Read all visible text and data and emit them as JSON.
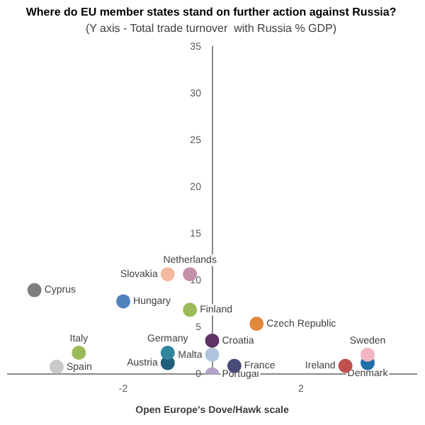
{
  "chart_data": {
    "type": "scatter",
    "title": "Where do EU member states stand on further action against Russia?",
    "subtitle": "(Y axis - Total trade turnover  with Russia % GDP)",
    "xlabel": "Open Europe's Dove/Hawk scale",
    "xlim": [
      -4.6,
      4.6
    ],
    "ylim": [
      0,
      35
    ],
    "xticks": [
      -2,
      2
    ],
    "yticks": [
      0,
      5,
      10,
      15,
      20,
      25,
      30,
      35
    ],
    "grid": false,
    "legend": false,
    "marker": "circle",
    "series": [
      {
        "name": "Spain",
        "color": "#c8c8c8",
        "x": [
          -3.5
        ],
        "values": [
          0.8
        ]
      },
      {
        "name": "Italy",
        "color": "#9bbb59",
        "x": [
          -3
        ],
        "values": [
          2.3
        ]
      },
      {
        "name": "Cyprus",
        "color": "#7f7f7f",
        "x": [
          -4
        ],
        "values": [
          9
        ]
      },
      {
        "name": "Hungary",
        "color": "#4f81bd",
        "x": [
          -2
        ],
        "values": [
          7.8
        ]
      },
      {
        "name": "Slovakia",
        "color": "#f2b8a0",
        "x": [
          -1
        ],
        "values": [
          10.7
        ]
      },
      {
        "name": "Netherlands",
        "color": "#c490a8",
        "x": [
          -0.5
        ],
        "values": [
          10.7
        ]
      },
      {
        "name": "Finland",
        "color": "#9bbb59",
        "x": [
          -0.5
        ],
        "values": [
          6.9
        ]
      },
      {
        "name": "Germany",
        "color": "#31859c",
        "x": [
          -1
        ],
        "values": [
          2.3
        ]
      },
      {
        "name": "Austria",
        "color": "#1f5f7a",
        "x": [
          -1
        ],
        "values": [
          1.2
        ]
      },
      {
        "name": "Malta",
        "color": "#b0c4de",
        "x": [
          0
        ],
        "values": [
          2.1
        ]
      },
      {
        "name": "Croatia",
        "color": "#5f3264",
        "x": [
          0
        ],
        "values": [
          3.6
        ]
      },
      {
        "name": "Portugal",
        "color": "#b3a2c7",
        "x": [
          0
        ],
        "values": [
          0
        ]
      },
      {
        "name": "France",
        "color": "#4a4a7a",
        "x": [
          0.5
        ],
        "values": [
          0.9
        ]
      },
      {
        "name": "Czech Republic",
        "color": "#e0883c",
        "x": [
          1
        ],
        "values": [
          5.4
        ]
      },
      {
        "name": "Ireland",
        "color": "#c0504d",
        "x": [
          3
        ],
        "values": [
          0.9
        ]
      },
      {
        "name": "Sweden",
        "color": "#f4b6c2",
        "x": [
          3.5
        ],
        "values": [
          2.1
        ]
      },
      {
        "name": "Denmark",
        "color": "#1f6fa8",
        "x": [
          3.5
        ],
        "values": [
          1.2
        ]
      }
    ]
  }
}
